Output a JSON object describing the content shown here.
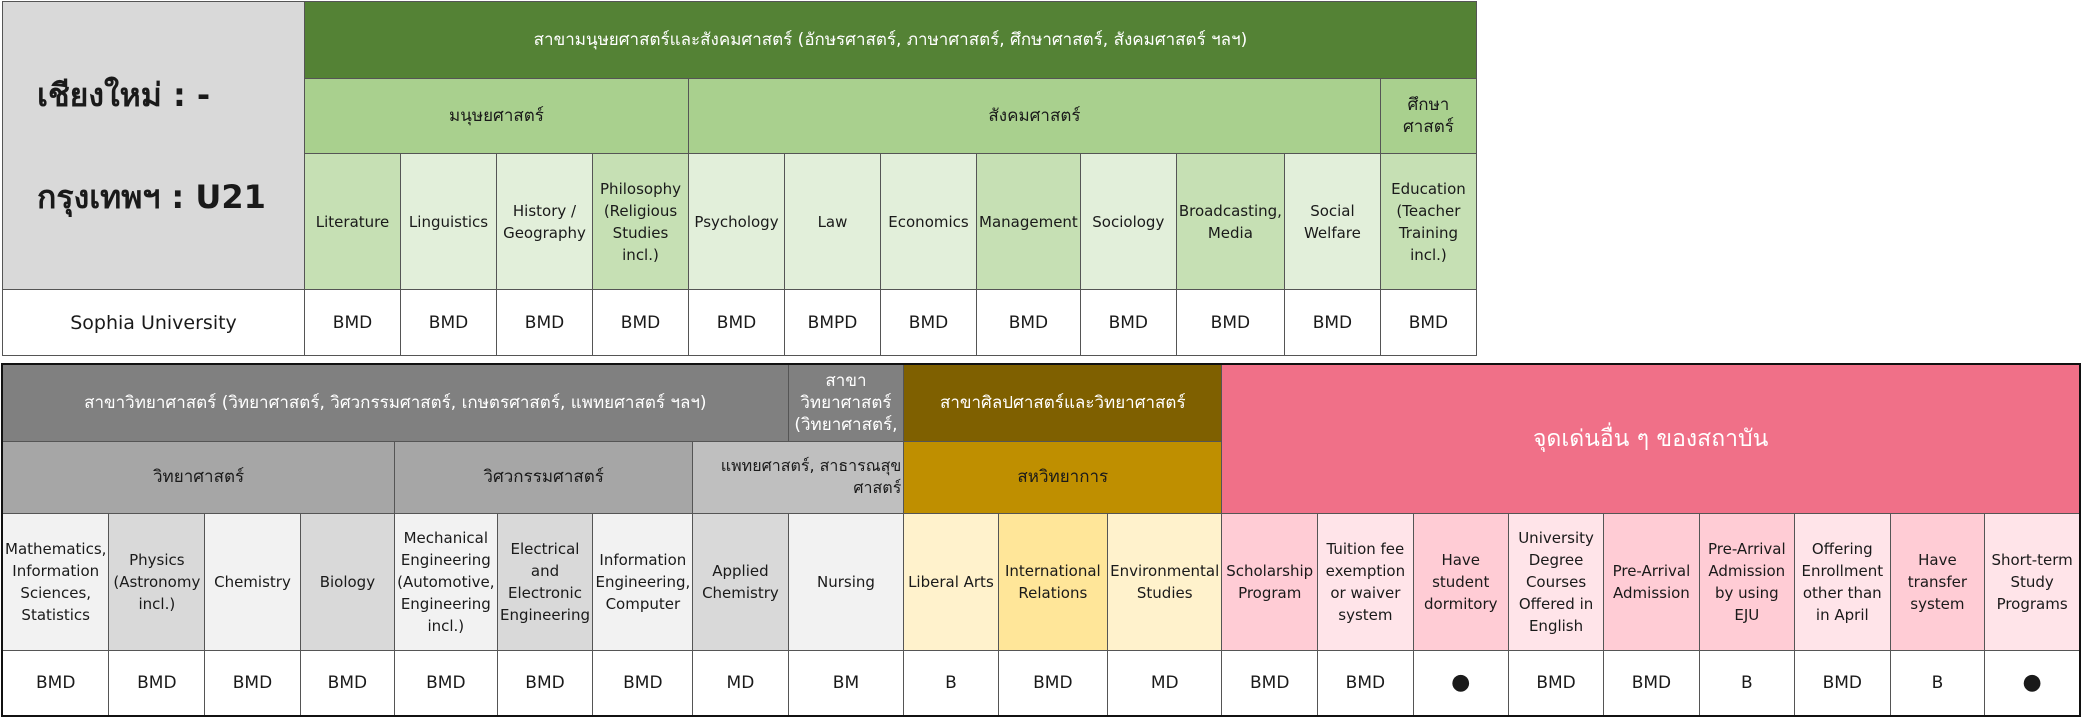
{
  "corner": {
    "chiangmai": "เชียงใหม่ : -",
    "bangkok": "กรุงเทพฯ : U21"
  },
  "top": {
    "group": "สาขามนุษยศาสตร์และสังคมศาสตร์ (อักษรศาสตร์, ภาษาศาสตร์, ศึกษาศาสตร์, สังคมศาสตร์ ฯลฯ)",
    "sub1": "มนุษยศาสตร์",
    "sub2": "สังคมศาสตร์",
    "sub3": "ศึกษาศาสตร์",
    "fields": [
      "Literature",
      "Linguistics",
      "History / Geography",
      "Philosophy (Religious Studies incl.)",
      "Psychology",
      "Law",
      "Economics",
      "Management",
      "Sociology",
      "Broadcasting, Media",
      "Social Welfare",
      "Education (Teacher Training incl.)"
    ],
    "university": "Sophia University",
    "values": [
      "BMD",
      "BMD",
      "BMD",
      "BMD",
      "BMD",
      "BMPD",
      "BMD",
      "BMD",
      "BMD",
      "BMD",
      "BMD",
      "BMD"
    ]
  },
  "bottom": {
    "sci_group": "สาขาวิทยาศาสตร์ (วิทยาศาสตร์, วิศวกรรมศาสตร์, เกษตรศาสตร์, แพทยศาสตร์ ฯลฯ)",
    "sci_group2": "สาขา วิทยาศาสตร์ (วิทยาศาสตร์,",
    "sci_sub1": "วิทยาศาสตร์",
    "sci_sub2": "วิศวกรรมศาสตร์",
    "sci_sub3": "แพทยศาสตร์, สาธารณสุขศาสตร์",
    "art_group": "สาขาศิลปศาสตร์และวิทยาศาสตร์",
    "art_sub": "สหวิทยาการ",
    "other_group": "จุดเด่นอื่น ๆ ของสถาบัน",
    "fields": [
      "Mathematics, Information Sciences, Statistics",
      "Physics (Astronomy incl.)",
      "Chemistry",
      "Biology",
      "Mechanical Engineering (Automotive, Engineering incl.)",
      "Electrical and Electronic Engineering",
      "Information Engineering, Computer",
      "Applied Chemistry",
      "Nursing",
      "Liberal Arts",
      "International Relations",
      "Environmental Studies",
      "Scholarship Program",
      "Tuition fee exemption or waiver system",
      "Have student dormitory",
      "University Degree Courses Offered in English",
      "Pre-Arrival Admission",
      "Pre-Arrival Admission by using EJU",
      "Offering Enrollment other than in April",
      "Have transfer system",
      "Short-term Study Programs"
    ],
    "values": [
      "BMD",
      "BMD",
      "BMD",
      "BMD",
      "BMD",
      "BMD",
      "BMD",
      "MD",
      "BM",
      "B",
      "BMD",
      "MD",
      "BMD",
      "BMD",
      "●",
      "BMD",
      "BMD",
      "B",
      "BMD",
      "B",
      "●"
    ]
  }
}
